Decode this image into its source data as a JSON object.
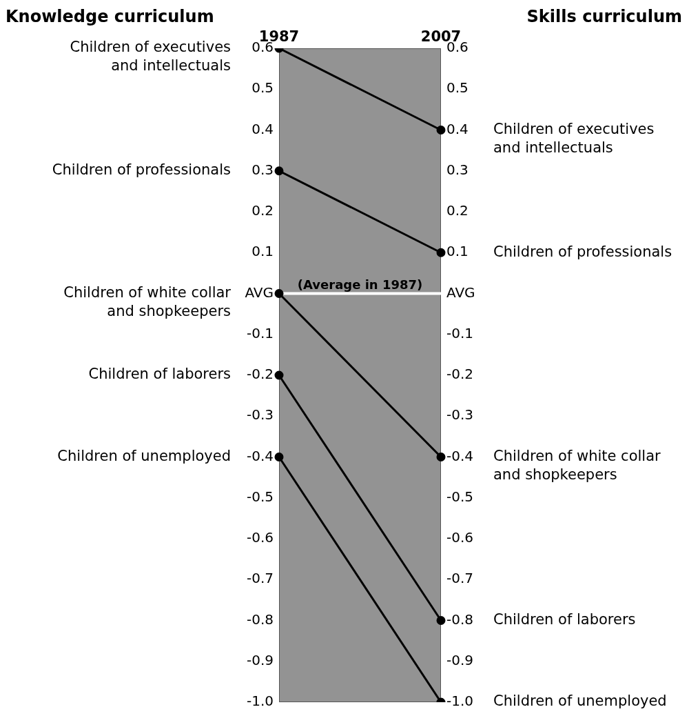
{
  "chart_data": {
    "type": "line",
    "ylabel": "Knowledge curriculum",
    "y2label": "Skills curriculum",
    "categories": [
      "1987",
      "2007"
    ],
    "series": [
      {
        "name": "Children of executives and intellectuals",
        "color": "#000000",
        "values": [
          0.6,
          0.4
        ]
      },
      {
        "name": "Children of professionals",
        "color": "#000000",
        "values": [
          0.3,
          0.1
        ]
      },
      {
        "name": "Children of white collar and shopkeepers",
        "color": "#000000",
        "values": [
          0,
          -0.4
        ]
      },
      {
        "name": "Children of laborers",
        "color": "#000000",
        "values": [
          -0.2,
          -0.8
        ]
      },
      {
        "name": "Children of unemployed",
        "color": "#000000",
        "values": [
          -0.4,
          -1.0
        ]
      }
    ],
    "ylim": [
      -1.0,
      0.6
    ],
    "yticks": [
      0.6,
      0.5,
      0.4,
      0.3,
      0.2,
      0.1,
      {
        "value": 0,
        "label": "AVG"
      },
      -0.1,
      -0.2,
      -0.3,
      -0.4,
      -0.5,
      -0.6,
      -0.7,
      -0.8,
      -0.9,
      {
        "value": -1,
        "label": "-1.0"
      }
    ],
    "y2lim": [
      -1.0,
      0.6
    ],
    "y2ticks": [
      0.6,
      0.5,
      0.4,
      0.3,
      0.2,
      0.1,
      {
        "value": 0,
        "label": "AVG"
      },
      -0.1,
      -0.2,
      -0.3,
      -0.4,
      -0.5,
      -0.6,
      -0.7,
      -0.8,
      -0.9,
      {
        "value": -1,
        "label": "-1.0"
      }
    ],
    "ref_lines": [
      {
        "axis": "y",
        "value": 0,
        "label": "(Average in 1987)",
        "color": "#ffffff"
      }
    ],
    "marker": "circle",
    "line_style": "solid",
    "legend": false,
    "grid": false
  }
}
